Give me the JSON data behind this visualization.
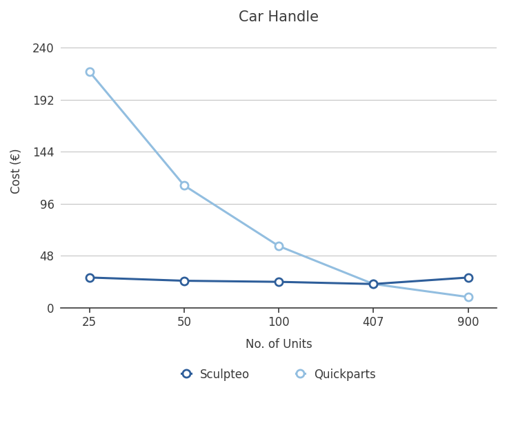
{
  "title": "Car Handle",
  "xlabel": "No. of Units",
  "ylabel": "Cost (€)",
  "x_labels": [
    "25",
    "50",
    "100",
    "407",
    "900"
  ],
  "sculpteo_y": [
    28,
    25,
    24,
    22,
    28
  ],
  "quickparts_y": [
    218,
    113,
    57,
    22,
    10
  ],
  "sculpteo_color": "#2E5E9A",
  "quickparts_color": "#92BEE0",
  "ylim": [
    0,
    252
  ],
  "yticks": [
    0,
    48,
    96,
    144,
    192,
    240
  ],
  "background_color": "#ffffff",
  "grid_color": "#c8c8c8",
  "title_fontsize": 15,
  "label_fontsize": 12,
  "tick_fontsize": 12,
  "legend_fontsize": 12,
  "line_width": 2.2,
  "marker_size": 8,
  "marker_edge_width": 2.0
}
